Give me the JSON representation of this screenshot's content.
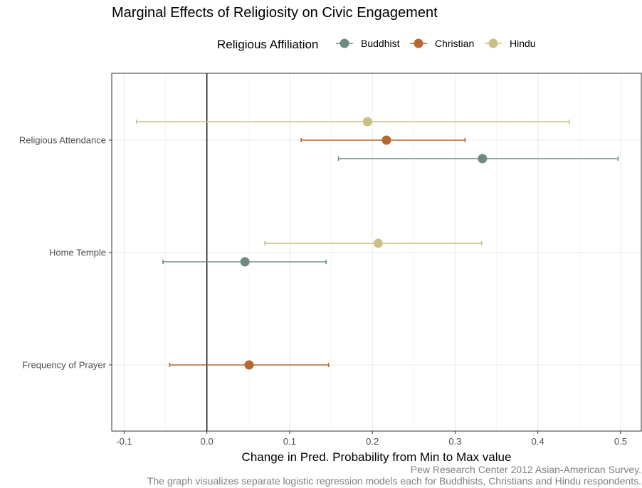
{
  "chart_data": {
    "type": "scatter",
    "title": "Marginal Effects of Religiosity on Civic Engagement",
    "xlabel": "Change in Pred. Probability from Min to Max value",
    "ylabel": "",
    "xlim": [
      -0.115,
      0.525
    ],
    "x_ticks": [
      -0.1,
      0.0,
      0.1,
      0.2,
      0.3,
      0.4,
      0.5
    ],
    "x_tick_labels": [
      "-0.1",
      "0.0",
      "0.1",
      "0.2",
      "0.3",
      "0.4",
      "0.5"
    ],
    "categories": [
      "Religious Attendance",
      "Home Temple",
      "Frequency of Prayer"
    ],
    "reference_line_x": 0,
    "grid": true,
    "legend": {
      "title": "Religious Affiliation",
      "placement": "top",
      "entries": [
        "Buddhist",
        "Christian",
        "Hindu"
      ]
    },
    "series": [
      {
        "name": "Buddhist",
        "color": "#6e8a80",
        "points": [
          {
            "category": "Religious Attendance",
            "estimate": 0.333,
            "lower": 0.159,
            "upper": 0.497
          },
          {
            "category": "Home Temple",
            "estimate": 0.046,
            "lower": -0.053,
            "upper": 0.144
          }
        ]
      },
      {
        "name": "Christian",
        "color": "#b5672f",
        "points": [
          {
            "category": "Religious Attendance",
            "estimate": 0.217,
            "lower": 0.114,
            "upper": 0.312
          },
          {
            "category": "Frequency of Prayer",
            "estimate": 0.051,
            "lower": -0.045,
            "upper": 0.147
          }
        ]
      },
      {
        "name": "Hindu",
        "color": "#cabf85",
        "points": [
          {
            "category": "Religious Attendance",
            "estimate": 0.194,
            "lower": -0.085,
            "upper": 0.438
          },
          {
            "category": "Home Temple",
            "estimate": 0.207,
            "lower": 0.07,
            "upper": 0.332
          }
        ]
      }
    ],
    "caption": [
      "Pew Research Center 2012 Asian-American Survey.",
      "The graph visualizes separate logistic regression models each for Buddhists, Christians and Hindu respondents."
    ]
  }
}
